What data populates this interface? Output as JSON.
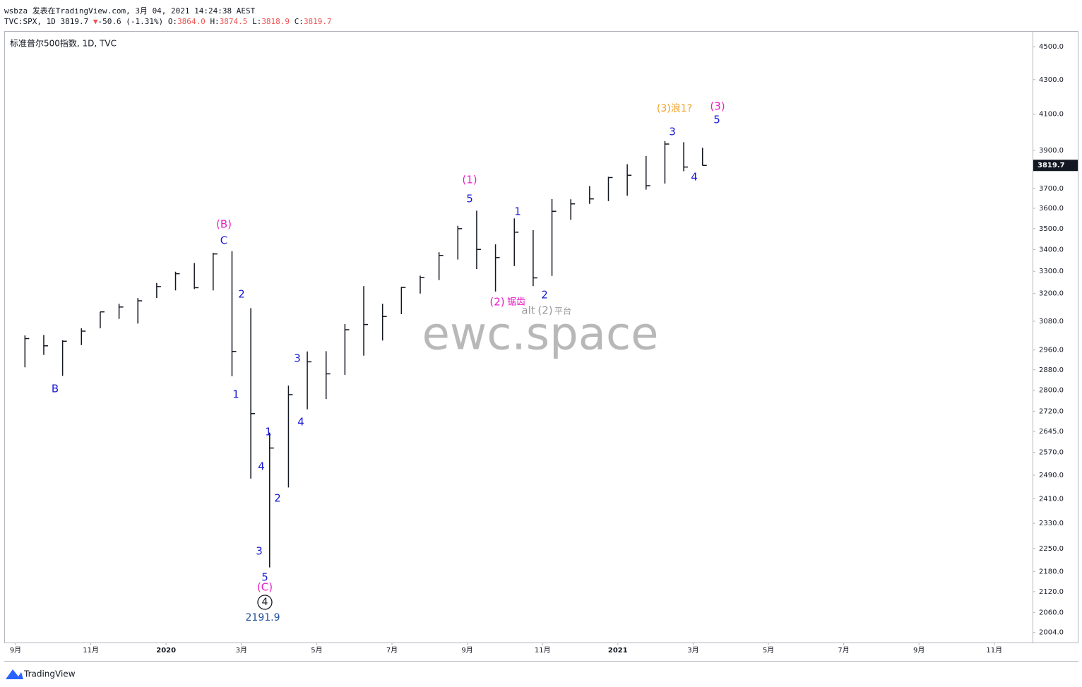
{
  "header": {
    "line1": "wsbza 发表在TradingView.com, 3月 04, 2021 14:24:38 AEST",
    "symbol": "TVC:SPX, 1D 3819.7",
    "arrow": "▼",
    "change": "-50.6 (-1.31%)",
    "o_label": "O:",
    "o": "3864.0",
    "h_label": "H:",
    "h": "3874.5",
    "l_label": "L:",
    "l": "3818.9",
    "c_label": "C:",
    "c": "3819.7"
  },
  "chart_label": "标准普尔500指数, 1D, TVC",
  "watermark": "ewc.space",
  "footer": "TradingView",
  "chart_data": {
    "type": "hlc",
    "log_scale": true,
    "color": "#131722",
    "categories": [
      "9月",
      null,
      null,
      null,
      "11月",
      null,
      null,
      null,
      "2020",
      null,
      null,
      null,
      "3月",
      null,
      null,
      null,
      "5月",
      null,
      null,
      null,
      "7月",
      null,
      null,
      null,
      "9月",
      null,
      null,
      null,
      "11月",
      null,
      null,
      null,
      "2021",
      null,
      null,
      null,
      "3月",
      null,
      null,
      null,
      "5月",
      null,
      null,
      null,
      "7月",
      null,
      null,
      null,
      "9月",
      null,
      null,
      null,
      "11月",
      null
    ],
    "high": [
      3020,
      3022,
      3000,
      3050,
      3120,
      3155,
      3180,
      3247,
      3298,
      3338,
      3385,
      3393,
      3136,
      2641,
      2818,
      2954,
      2955,
      3068,
      3233,
      3155,
      3230,
      3280,
      3388,
      3514,
      3588,
      3425,
      3550,
      3493,
      3646,
      3645,
      3712,
      3760,
      3826,
      3870,
      3950,
      3944,
      3914,
      null,
      null,
      null,
      null,
      null,
      null,
      null,
      null,
      null,
      null,
      null,
      null,
      null,
      null,
      null,
      null,
      null
    ],
    "low": [
      2890,
      2940,
      2856,
      2980,
      3050,
      3090,
      3070,
      3180,
      3214,
      3220,
      3214,
      2855,
      2478,
      2191.9,
      2448,
      2727,
      2766,
      2860,
      2937,
      2999,
      3110,
      3200,
      3260,
      3354,
      3310,
      3209,
      3324,
      3233,
      3279,
      3543,
      3622,
      3636,
      3663,
      3694,
      3725,
      3789,
      3818.9,
      null,
      null,
      null,
      null,
      null,
      null,
      null,
      null,
      null,
      null,
      null,
      null,
      null,
      null,
      null,
      null,
      null
    ],
    "close": [
      3007,
      2977,
      2996,
      3038,
      3120,
      3141,
      3168,
      3231,
      3289,
      3226,
      3380,
      2954,
      2711,
      2585,
      2783,
      2912,
      2864,
      3044,
      3066,
      3100,
      3227,
      3271,
      3373,
      3500,
      3401,
      3363,
      3483,
      3270,
      3585,
      3622,
      3647,
      3756,
      3768,
      3714,
      3934,
      3811,
      3819.7,
      null,
      null,
      null,
      null,
      null,
      null,
      null,
      null,
      null,
      null,
      null,
      null,
      null,
      null,
      null,
      null,
      null
    ],
    "ylim": [
      1976,
      4594
    ],
    "yticks": [
      {
        "value": 4500,
        "label": "4500.0"
      },
      {
        "value": 4300,
        "label": "4300.0"
      },
      {
        "value": 4100,
        "label": "4100.0"
      },
      {
        "value": 3900,
        "label": "3900.0"
      },
      {
        "value": 3700,
        "label": "3700.0"
      },
      {
        "value": 3600,
        "label": "3600.0"
      },
      {
        "value": 3500,
        "label": "3500.0"
      },
      {
        "value": 3400,
        "label": "3400.0"
      },
      {
        "value": 3300,
        "label": "3300.0"
      },
      {
        "value": 3200,
        "label": "3200.0"
      },
      {
        "value": 3080,
        "label": "3080.0"
      },
      {
        "value": 2960,
        "label": "2960.0"
      },
      {
        "value": 2880,
        "label": "2880.0"
      },
      {
        "value": 2800,
        "label": "2800.0"
      },
      {
        "value": 2720,
        "label": "2720.0"
      },
      {
        "value": 2645,
        "label": "2645.0"
      },
      {
        "value": 2570,
        "label": "2570.0"
      },
      {
        "value": 2490,
        "label": "2490.0"
      },
      {
        "value": 2410,
        "label": "2410.0"
      },
      {
        "value": 2330,
        "label": "2330.0"
      },
      {
        "value": 2250,
        "label": "2250.0"
      },
      {
        "value": 2180,
        "label": "2180.0"
      },
      {
        "value": 2120,
        "label": "2120.0"
      },
      {
        "value": 2060,
        "label": "2060.0"
      },
      {
        "value": 2004,
        "label": "2004.0"
      }
    ],
    "last_price": 3819.7,
    "annotations": [
      {
        "text": "(B)",
        "color": "#e91ec8"
      },
      {
        "text": "C",
        "color": "#1a1ad6"
      },
      {
        "text": "B",
        "color": "#1a1ad6"
      },
      {
        "text": "2",
        "color": "#1a1ad6"
      },
      {
        "text": "1",
        "color": "#1a1ad6"
      },
      {
        "text": "3",
        "color": "#1a1ad6"
      },
      {
        "text": "4",
        "color": "#1a1ad6"
      },
      {
        "text": "1",
        "color": "#1a1ad6"
      },
      {
        "text": "4",
        "color": "#1a1ad6"
      },
      {
        "text": "2",
        "color": "#1a1ad6"
      },
      {
        "text": "3",
        "color": "#1a1ad6"
      },
      {
        "text": "5",
        "color": "#1a1ad6"
      },
      {
        "text": "(C)",
        "color": "#e91ec8"
      },
      {
        "text": "4",
        "color": "#131722"
      },
      {
        "text": "2191.9",
        "color": "#1f4e9c"
      },
      {
        "text": "(1)",
        "color": "#e91ec8"
      },
      {
        "text": "5",
        "color": "#1a1ad6"
      },
      {
        "text": "1",
        "color": "#1a1ad6"
      },
      {
        "text": "(2)",
        "color": "#e91ec8"
      },
      {
        "text": "锯齿",
        "color": "#e91ec8"
      },
      {
        "text": "2",
        "color": "#1a1ad6"
      },
      {
        "text": "alt",
        "color": "#9b9b9b"
      },
      {
        "text": "(2)",
        "color": "#9b9b9b"
      },
      {
        "text": "平台",
        "color": "#9b9b9b"
      },
      {
        "text": "(3)浪1?",
        "color": "#f0a020"
      },
      {
        "text": "3",
        "color": "#1a1ad6"
      },
      {
        "text": "(3)",
        "color": "#e91ec8"
      },
      {
        "text": "5",
        "color": "#1a1ad6"
      },
      {
        "text": "4",
        "color": "#1a1ad6"
      }
    ]
  }
}
